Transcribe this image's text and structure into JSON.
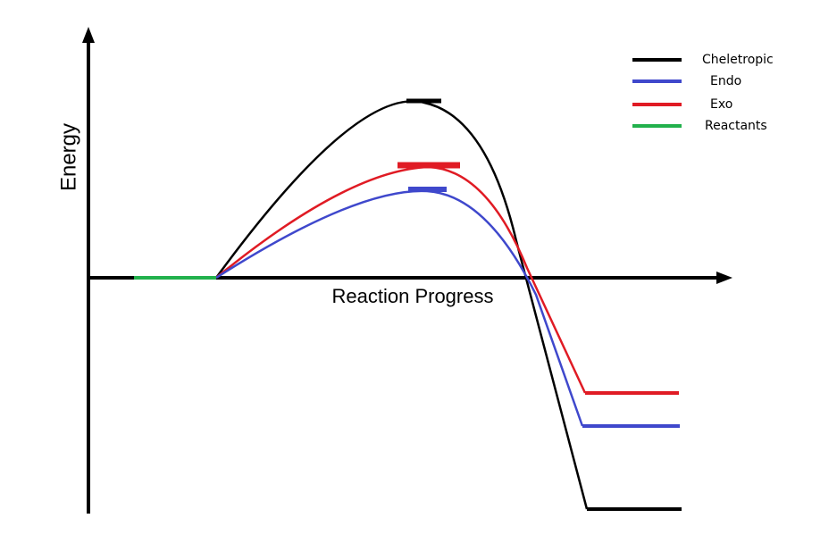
{
  "axes": {
    "y_label": "Energy",
    "x_label": "Reaction Progress"
  },
  "legend": [
    {
      "name": "Cheletropic",
      "color": "#000000"
    },
    {
      "name": "Endo",
      "color": "#3f48cc"
    },
    {
      "name": "Exo",
      "color": "#e01b24"
    },
    {
      "name": "Reactants",
      "color": "#22b14c"
    }
  ]
}
